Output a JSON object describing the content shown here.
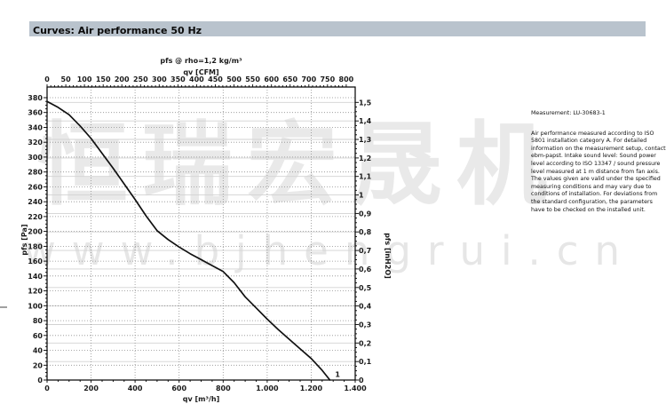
{
  "header": {
    "title": "Curves: Air performance 50 Hz"
  },
  "watermark": {
    "chinese": "恒瑞宏晟机",
    "url": "www.bjhengrui.cn"
  },
  "notes": {
    "measurement": "Measurement: LU-30683-1",
    "description": "Air performance measured according to ISO 5801 installation category A. For detailed information on the measurement setup, contact ebm-papst. Intake sound level: Sound power level according to ISO 13347 / sound pressure level measured at 1 m distance from fan axis. The values given are valid under the specified measuring conditions and may vary due to conditions of installation. For deviations from the standard configuration, the parameters have to be checked on the installed unit."
  },
  "chart_data": {
    "type": "line",
    "title": "pfs @ rho=1,2 kg/m³",
    "grid": {
      "horizontal_pa_step": 20,
      "horizontal_inh2o_step": 0.1,
      "vertical_m3h_step": 200,
      "style": "dotted"
    },
    "axes": {
      "top": {
        "label": "qv [CFM]",
        "min": 0,
        "max": 800,
        "major": 50,
        "minor": 10,
        "tick_labels": [
          "0",
          "50",
          "100",
          "150",
          "200",
          "250",
          "300",
          "350",
          "400",
          "450",
          "500",
          "550",
          "600",
          "650",
          "700",
          "750",
          "800"
        ]
      },
      "bottom": {
        "label": "qv [m³/h]",
        "min": 0,
        "max": 1400,
        "major": 200,
        "minor": 50,
        "tick_labels": [
          "0",
          "200",
          "400",
          "600",
          "800",
          "1.000",
          "1.200",
          "1.400"
        ]
      },
      "left": {
        "label": "pfs [Pa]",
        "min": 0,
        "max": 380,
        "major": 20,
        "minor": 5,
        "tick_labels": [
          "0",
          "20",
          "40",
          "60",
          "80",
          "100",
          "120",
          "140",
          "160",
          "180",
          "200",
          "220",
          "240",
          "260",
          "280",
          "300",
          "320",
          "340",
          "360",
          "380"
        ]
      },
      "right": {
        "label": "pfs [inH2O]",
        "min": 0,
        "max": 1.5,
        "major": 0.1,
        "minor": 0.025,
        "tick_labels": [
          "0",
          "0,1",
          "0,2",
          "0,3",
          "0,4",
          "0,5",
          "0,6",
          "0,7",
          "0,8",
          "0,9",
          "1",
          "1,1",
          "1,2",
          "1,3",
          "1,4",
          "1,5"
        ]
      }
    },
    "series": [
      {
        "name": "curve-1",
        "label": "1",
        "label_pos": [
          1320,
          4
        ],
        "points": [
          [
            0,
            375
          ],
          [
            50,
            367
          ],
          [
            100,
            357
          ],
          [
            150,
            342
          ],
          [
            200,
            325
          ],
          [
            250,
            305
          ],
          [
            300,
            285
          ],
          [
            350,
            264
          ],
          [
            400,
            243
          ],
          [
            450,
            221
          ],
          [
            500,
            201
          ],
          [
            550,
            189
          ],
          [
            600,
            179
          ],
          [
            650,
            170
          ],
          [
            700,
            162
          ],
          [
            750,
            154
          ],
          [
            800,
            146
          ],
          [
            850,
            131
          ],
          [
            900,
            112
          ],
          [
            950,
            97
          ],
          [
            1000,
            82
          ],
          [
            1050,
            68
          ],
          [
            1100,
            55
          ],
          [
            1150,
            42
          ],
          [
            1200,
            29
          ],
          [
            1250,
            13
          ],
          [
            1285,
            0
          ]
        ]
      }
    ]
  }
}
